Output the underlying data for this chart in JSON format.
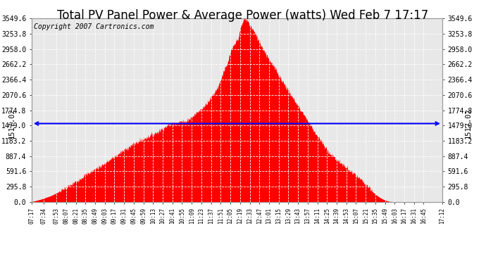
{
  "title": "Total PV Panel Power & Average Power (watts) Wed Feb 7 17:17",
  "copyright": "Copyright 2007 Cartronics.com",
  "average_value": 1517.02,
  "y_max": 3549.6,
  "y_min": 0.0,
  "yticks": [
    0.0,
    295.8,
    591.6,
    887.4,
    1183.2,
    1479.0,
    1774.8,
    2070.6,
    2366.4,
    2662.2,
    2958.0,
    3253.8,
    3549.6
  ],
  "bar_color": "#FF0000",
  "avg_line_color": "#0000FF",
  "background_color": "#FFFFFF",
  "plot_bg_color": "#E8E8E8",
  "title_fontsize": 12,
  "copyright_fontsize": 7,
  "avg_label_fontsize": 7.5,
  "xtick_fontsize": 5.5,
  "ytick_fontsize": 7,
  "xtick_labels": [
    "07:17",
    "07:34",
    "07:53",
    "08:07",
    "08:21",
    "08:35",
    "08:49",
    "09:03",
    "09:17",
    "09:31",
    "09:45",
    "09:59",
    "10:13",
    "10:27",
    "10:41",
    "10:55",
    "11:09",
    "11:23",
    "11:37",
    "11:51",
    "12:05",
    "12:19",
    "12:33",
    "12:47",
    "13:01",
    "13:15",
    "13:29",
    "13:43",
    "13:57",
    "14:11",
    "14:25",
    "14:39",
    "14:53",
    "15:07",
    "15:21",
    "15:35",
    "15:49",
    "16:03",
    "16:17",
    "16:31",
    "16:45",
    "17:12"
  ],
  "pv_curve_points": [
    [
      437,
      5
    ],
    [
      450,
      50
    ],
    [
      465,
      120
    ],
    [
      480,
      220
    ],
    [
      495,
      340
    ],
    [
      510,
      480
    ],
    [
      521,
      570
    ],
    [
      535,
      680
    ],
    [
      550,
      810
    ],
    [
      563,
      930
    ],
    [
      577,
      1060
    ],
    [
      590,
      1160
    ],
    [
      600,
      1230
    ],
    [
      613,
      1310
    ],
    [
      621,
      1370
    ],
    [
      635,
      1490
    ],
    [
      643,
      1530
    ],
    [
      650,
      1550
    ],
    [
      655,
      1560
    ],
    [
      658,
      1540
    ],
    [
      663,
      1590
    ],
    [
      670,
      1650
    ],
    [
      677,
      1740
    ],
    [
      685,
      1820
    ],
    [
      693,
      1960
    ],
    [
      701,
      2100
    ],
    [
      708,
      2260
    ],
    [
      715,
      2530
    ],
    [
      720,
      2640
    ],
    [
      725,
      2900
    ],
    [
      733,
      3100
    ],
    [
      737,
      3200
    ],
    [
      740,
      3380
    ],
    [
      743,
      3480
    ],
    [
      745,
      3549
    ],
    [
      747,
      3540
    ],
    [
      749,
      3510
    ],
    [
      751,
      3480
    ],
    [
      753,
      3420
    ],
    [
      757,
      3350
    ],
    [
      761,
      3250
    ],
    [
      765,
      3150
    ],
    [
      770,
      3020
    ],
    [
      775,
      2900
    ],
    [
      780,
      2790
    ],
    [
      785,
      2680
    ],
    [
      790,
      2570
    ],
    [
      795,
      2460
    ],
    [
      800,
      2350
    ],
    [
      805,
      2240
    ],
    [
      810,
      2130
    ],
    [
      815,
      2020
    ],
    [
      820,
      1920
    ],
    [
      825,
      1820
    ],
    [
      830,
      1720
    ],
    [
      835,
      1620
    ],
    [
      840,
      1510
    ],
    [
      845,
      1400
    ],
    [
      855,
      1200
    ],
    [
      865,
      1000
    ],
    [
      875,
      870
    ],
    [
      885,
      750
    ],
    [
      895,
      640
    ],
    [
      905,
      530
    ],
    [
      915,
      420
    ],
    [
      920,
      350
    ],
    [
      925,
      280
    ],
    [
      930,
      210
    ],
    [
      935,
      150
    ],
    [
      940,
      100
    ],
    [
      945,
      60
    ],
    [
      950,
      30
    ],
    [
      955,
      10
    ],
    [
      960,
      5
    ],
    [
      965,
      2
    ],
    [
      970,
      0
    ],
    [
      1032,
      0
    ]
  ]
}
